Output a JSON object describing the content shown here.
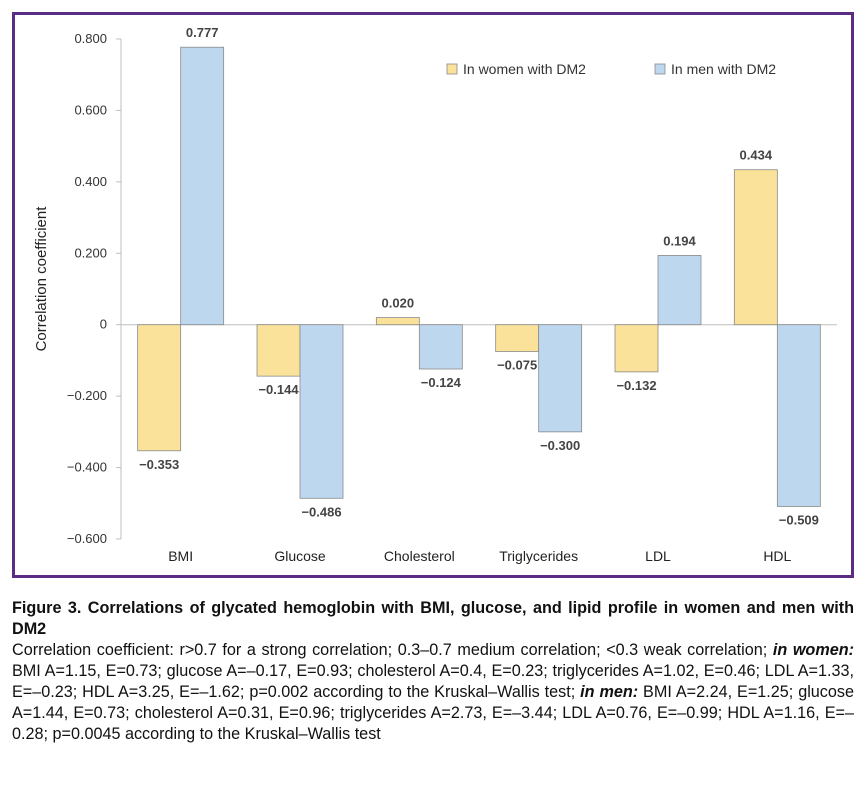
{
  "chart_data": {
    "type": "bar",
    "ylabel": "Correlation coefficient",
    "ylim": [
      -0.6,
      0.8
    ],
    "yticks": [
      0.8,
      0.6,
      0.4,
      0.2,
      0,
      -0.2,
      -0.4,
      -0.6
    ],
    "ytick_labels": [
      "0.800",
      "0.600",
      "0.400",
      "0.200",
      "0",
      "−0.200",
      "−0.400",
      "−0.600"
    ],
    "categories": [
      "BMI",
      "Glucose",
      "Cholesterol",
      "Triglycerides",
      "LDL",
      "HDL"
    ],
    "series": [
      {
        "name": "In women with DM2",
        "color": "#fbe29a",
        "values": [
          -0.353,
          -0.144,
          0.02,
          -0.075,
          -0.132,
          0.434
        ],
        "labels": [
          "−0.353",
          "−0.144",
          "0.020",
          "−0.075",
          "−0.132",
          "0.434"
        ]
      },
      {
        "name": "In men with DM2",
        "color": "#bdd7ee",
        "values": [
          0.777,
          -0.486,
          -0.124,
          -0.3,
          0.194,
          -0.509
        ],
        "labels": [
          "0.777",
          "−0.486",
          "−0.124",
          "−0.300",
          "0.194",
          "−0.509"
        ]
      }
    ],
    "legend_position": "top-right",
    "grid": false
  },
  "caption": {
    "title": "Figure 3. Correlations of glycated hemoglobin with BMI, glucose, and lipid profile in women and men with DM2",
    "text_1": "Correlation coefficient: r>0.7 for a strong correlation; 0.3–0.7 medium correlation; <0.3 weak correlation; ",
    "women_label": "in women:",
    "text_2": " BMI A=1.15, E=0.73; glucose A=–0.17, E=0.93; cholesterol A=0.4, E=0.23; triglycerides A=1.02, E=0.46; LDL A=1.33, E=–0.23; HDL A=3.25, E=–1.62; p=0.002 according to the Kruskal–Wallis test; ",
    "men_label": "in men:",
    "text_3": " BMI A=2.24, E=1.25; glucose A=1.44, E=0.73; cholesterol A=0.31, E=0.96; triglycerides A=2.73, E=–3.44; LDL A=0.76, E=–0.99; HDL A=1.16, E=–0.28; p=0.0045 according to the Kruskal–Wallis test"
  }
}
